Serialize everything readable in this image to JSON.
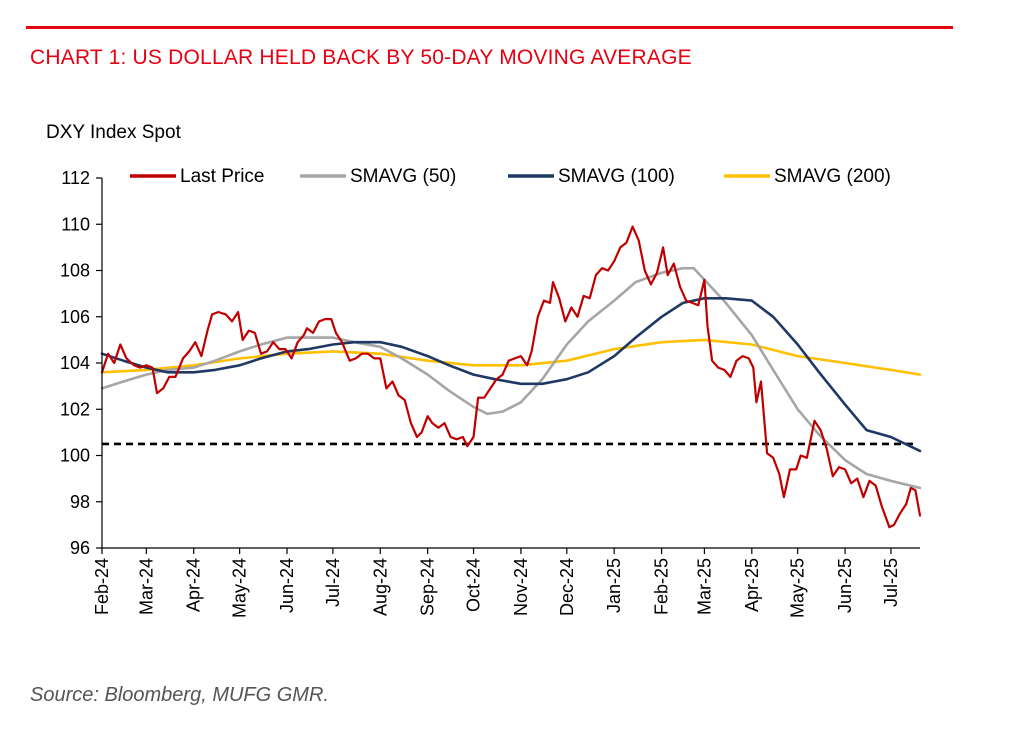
{
  "header": {
    "title": "CHART 1: US DOLLAR HELD BACK BY 50-DAY MOVING AVERAGE",
    "accent_color": "#e60012"
  },
  "footer": {
    "source": "Source: Bloomberg, MUFG GMR."
  },
  "chart_data": {
    "type": "line",
    "title": "CHART 1: US DOLLAR HELD BACK BY 50-DAY MOVING AVERAGE",
    "ylabel": "DXY Index Spot",
    "xlabel": "",
    "ylim": [
      96,
      112
    ],
    "yticks": [
      96,
      98,
      100,
      102,
      104,
      106,
      108,
      110,
      112
    ],
    "x_range": [
      "2024-02-01",
      "2025-07-20"
    ],
    "xticks": [
      {
        "date": "2024-02-01",
        "label": "Feb-24"
      },
      {
        "date": "2024-03-01",
        "label": "Mar-24"
      },
      {
        "date": "2024-04-01",
        "label": "Apr-24"
      },
      {
        "date": "2024-05-01",
        "label": "May-24"
      },
      {
        "date": "2024-06-01",
        "label": "Jun-24"
      },
      {
        "date": "2024-07-01",
        "label": "Jul-24"
      },
      {
        "date": "2024-08-01",
        "label": "Aug-24"
      },
      {
        "date": "2024-09-01",
        "label": "Sep-24"
      },
      {
        "date": "2024-10-01",
        "label": "Oct-24"
      },
      {
        "date": "2024-11-01",
        "label": "Nov-24"
      },
      {
        "date": "2024-12-01",
        "label": "Dec-24"
      },
      {
        "date": "2025-01-01",
        "label": "Jan-25"
      },
      {
        "date": "2025-02-01",
        "label": "Feb-25"
      },
      {
        "date": "2025-03-01",
        "label": "Mar-25"
      },
      {
        "date": "2025-04-01",
        "label": "Apr-25"
      },
      {
        "date": "2025-05-01",
        "label": "May-25"
      },
      {
        "date": "2025-06-01",
        "label": "Jun-25"
      },
      {
        "date": "2025-07-01",
        "label": "Jul-25"
      }
    ],
    "legend_position": "top",
    "grid": false,
    "reference_line": {
      "y": 100.5,
      "style": "dashed",
      "color": "#000000"
    },
    "series": [
      {
        "name": "Last Price",
        "color": "#c00000",
        "points": [
          [
            "2024-02-01",
            103.6
          ],
          [
            "2024-02-05",
            104.4
          ],
          [
            "2024-02-09",
            104.0
          ],
          [
            "2024-02-13",
            104.8
          ],
          [
            "2024-02-17",
            104.2
          ],
          [
            "2024-02-22",
            103.9
          ],
          [
            "2024-02-26",
            103.8
          ],
          [
            "2024-03-01",
            103.9
          ],
          [
            "2024-03-05",
            103.8
          ],
          [
            "2024-03-08",
            102.7
          ],
          [
            "2024-03-12",
            102.9
          ],
          [
            "2024-03-16",
            103.4
          ],
          [
            "2024-03-20",
            103.4
          ],
          [
            "2024-03-25",
            104.2
          ],
          [
            "2024-03-29",
            104.5
          ],
          [
            "2024-04-02",
            104.9
          ],
          [
            "2024-04-06",
            104.3
          ],
          [
            "2024-04-10",
            105.4
          ],
          [
            "2024-04-13",
            106.1
          ],
          [
            "2024-04-17",
            106.2
          ],
          [
            "2024-04-22",
            106.1
          ],
          [
            "2024-04-26",
            105.8
          ],
          [
            "2024-04-30",
            106.2
          ],
          [
            "2024-05-03",
            105.0
          ],
          [
            "2024-05-07",
            105.4
          ],
          [
            "2024-05-11",
            105.3
          ],
          [
            "2024-05-15",
            104.4
          ],
          [
            "2024-05-19",
            104.5
          ],
          [
            "2024-05-23",
            104.9
          ],
          [
            "2024-05-27",
            104.6
          ],
          [
            "2024-05-31",
            104.6
          ],
          [
            "2024-06-04",
            104.2
          ],
          [
            "2024-06-08",
            104.9
          ],
          [
            "2024-06-12",
            105.2
          ],
          [
            "2024-06-14",
            105.5
          ],
          [
            "2024-06-18",
            105.3
          ],
          [
            "2024-06-22",
            105.8
          ],
          [
            "2024-06-26",
            105.9
          ],
          [
            "2024-06-30",
            105.9
          ],
          [
            "2024-07-03",
            105.3
          ],
          [
            "2024-07-07",
            104.9
          ],
          [
            "2024-07-12",
            104.1
          ],
          [
            "2024-07-16",
            104.2
          ],
          [
            "2024-07-20",
            104.4
          ],
          [
            "2024-07-24",
            104.4
          ],
          [
            "2024-07-28",
            104.2
          ],
          [
            "2024-08-01",
            104.2
          ],
          [
            "2024-08-05",
            102.9
          ],
          [
            "2024-08-09",
            103.2
          ],
          [
            "2024-08-13",
            102.6
          ],
          [
            "2024-08-17",
            102.4
          ],
          [
            "2024-08-21",
            101.4
          ],
          [
            "2024-08-25",
            100.8
          ],
          [
            "2024-08-28",
            101.0
          ],
          [
            "2024-09-01",
            101.7
          ],
          [
            "2024-09-04",
            101.4
          ],
          [
            "2024-09-08",
            101.2
          ],
          [
            "2024-09-12",
            101.4
          ],
          [
            "2024-09-16",
            100.8
          ],
          [
            "2024-09-20",
            100.7
          ],
          [
            "2024-09-24",
            100.8
          ],
          [
            "2024-09-27",
            100.4
          ],
          [
            "2024-10-01",
            100.8
          ],
          [
            "2024-10-04",
            102.5
          ],
          [
            "2024-10-08",
            102.5
          ],
          [
            "2024-10-12",
            102.9
          ],
          [
            "2024-10-16",
            103.3
          ],
          [
            "2024-10-20",
            103.5
          ],
          [
            "2024-10-24",
            104.1
          ],
          [
            "2024-10-28",
            104.2
          ],
          [
            "2024-11-01",
            104.3
          ],
          [
            "2024-11-05",
            103.9
          ],
          [
            "2024-11-08",
            104.5
          ],
          [
            "2024-11-12",
            106.0
          ],
          [
            "2024-11-16",
            106.7
          ],
          [
            "2024-11-20",
            106.6
          ],
          [
            "2024-11-22",
            107.5
          ],
          [
            "2024-11-26",
            106.8
          ],
          [
            "2024-11-30",
            105.8
          ],
          [
            "2024-12-04",
            106.4
          ],
          [
            "2024-12-08",
            106.0
          ],
          [
            "2024-12-12",
            106.9
          ],
          [
            "2024-12-16",
            106.8
          ],
          [
            "2024-12-20",
            107.8
          ],
          [
            "2024-12-24",
            108.1
          ],
          [
            "2024-12-28",
            108.0
          ],
          [
            "2025-01-01",
            108.4
          ],
          [
            "2025-01-05",
            109.0
          ],
          [
            "2025-01-09",
            109.2
          ],
          [
            "2025-01-13",
            109.9
          ],
          [
            "2025-01-17",
            109.3
          ],
          [
            "2025-01-21",
            108.0
          ],
          [
            "2025-01-25",
            107.4
          ],
          [
            "2025-01-29",
            107.9
          ],
          [
            "2025-02-02",
            109.0
          ],
          [
            "2025-02-05",
            107.8
          ],
          [
            "2025-02-09",
            108.3
          ],
          [
            "2025-02-13",
            107.3
          ],
          [
            "2025-02-17",
            106.7
          ],
          [
            "2025-02-21",
            106.6
          ],
          [
            "2025-02-25",
            106.5
          ],
          [
            "2025-03-01",
            107.6
          ],
          [
            "2025-03-03",
            105.6
          ],
          [
            "2025-03-06",
            104.1
          ],
          [
            "2025-03-10",
            103.8
          ],
          [
            "2025-03-14",
            103.7
          ],
          [
            "2025-03-18",
            103.4
          ],
          [
            "2025-03-22",
            104.1
          ],
          [
            "2025-03-26",
            104.3
          ],
          [
            "2025-03-30",
            104.2
          ],
          [
            "2025-04-02",
            103.8
          ],
          [
            "2025-04-04",
            102.3
          ],
          [
            "2025-04-07",
            103.2
          ],
          [
            "2025-04-11",
            100.1
          ],
          [
            "2025-04-15",
            99.9
          ],
          [
            "2025-04-19",
            99.2
          ],
          [
            "2025-04-22",
            98.2
          ],
          [
            "2025-04-26",
            99.4
          ],
          [
            "2025-04-30",
            99.4
          ],
          [
            "2025-05-03",
            100.0
          ],
          [
            "2025-05-07",
            99.9
          ],
          [
            "2025-05-12",
            101.5
          ],
          [
            "2025-05-16",
            101.1
          ],
          [
            "2025-05-20",
            100.3
          ],
          [
            "2025-05-24",
            99.1
          ],
          [
            "2025-05-28",
            99.5
          ],
          [
            "2025-06-01",
            99.4
          ],
          [
            "2025-06-05",
            98.8
          ],
          [
            "2025-06-09",
            99.0
          ],
          [
            "2025-06-13",
            98.2
          ],
          [
            "2025-06-17",
            98.9
          ],
          [
            "2025-06-21",
            98.7
          ],
          [
            "2025-06-25",
            97.8
          ],
          [
            "2025-06-30",
            96.9
          ],
          [
            "2025-07-03",
            97.0
          ],
          [
            "2025-07-07",
            97.5
          ],
          [
            "2025-07-11",
            97.9
          ],
          [
            "2025-07-14",
            98.6
          ],
          [
            "2025-07-17",
            98.5
          ],
          [
            "2025-07-20",
            97.4
          ]
        ]
      },
      {
        "name": "SMAVG (50)",
        "color": "#a6a6a6",
        "points": [
          [
            "2024-02-01",
            102.9
          ],
          [
            "2024-02-15",
            103.2
          ],
          [
            "2024-03-01",
            103.5
          ],
          [
            "2024-03-15",
            103.7
          ],
          [
            "2024-04-01",
            103.8
          ],
          [
            "2024-04-15",
            104.1
          ],
          [
            "2024-05-01",
            104.5
          ],
          [
            "2024-05-15",
            104.8
          ],
          [
            "2024-06-01",
            105.1
          ],
          [
            "2024-06-15",
            105.1
          ],
          [
            "2024-07-01",
            105.1
          ],
          [
            "2024-07-15",
            104.9
          ],
          [
            "2024-08-01",
            104.7
          ],
          [
            "2024-08-15",
            104.2
          ],
          [
            "2024-09-01",
            103.5
          ],
          [
            "2024-09-15",
            102.8
          ],
          [
            "2024-10-01",
            102.1
          ],
          [
            "2024-10-10",
            101.8
          ],
          [
            "2024-10-20",
            101.9
          ],
          [
            "2024-11-01",
            102.3
          ],
          [
            "2024-11-15",
            103.3
          ],
          [
            "2024-12-01",
            104.8
          ],
          [
            "2024-12-15",
            105.8
          ],
          [
            "2025-01-01",
            106.7
          ],
          [
            "2025-01-15",
            107.5
          ],
          [
            "2025-02-01",
            107.9
          ],
          [
            "2025-02-15",
            108.1
          ],
          [
            "2025-02-22",
            108.1
          ],
          [
            "2025-03-01",
            107.6
          ],
          [
            "2025-03-15",
            106.6
          ],
          [
            "2025-04-01",
            105.2
          ],
          [
            "2025-04-15",
            103.7
          ],
          [
            "2025-05-01",
            102.0
          ],
          [
            "2025-05-15",
            100.9
          ],
          [
            "2025-06-01",
            99.8
          ],
          [
            "2025-06-15",
            99.2
          ],
          [
            "2025-07-01",
            98.9
          ],
          [
            "2025-07-20",
            98.6
          ]
        ]
      },
      {
        "name": "SMAVG (100)",
        "color": "#1f3864",
        "points": [
          [
            "2024-02-01",
            104.4
          ],
          [
            "2024-02-15",
            104.1
          ],
          [
            "2024-03-01",
            103.8
          ],
          [
            "2024-03-15",
            103.6
          ],
          [
            "2024-04-01",
            103.6
          ],
          [
            "2024-04-15",
            103.7
          ],
          [
            "2024-05-01",
            103.9
          ],
          [
            "2024-05-15",
            104.2
          ],
          [
            "2024-06-01",
            104.5
          ],
          [
            "2024-06-15",
            104.6
          ],
          [
            "2024-07-01",
            104.8
          ],
          [
            "2024-07-15",
            104.9
          ],
          [
            "2024-08-01",
            104.9
          ],
          [
            "2024-08-15",
            104.7
          ],
          [
            "2024-09-01",
            104.3
          ],
          [
            "2024-09-15",
            103.9
          ],
          [
            "2024-10-01",
            103.5
          ],
          [
            "2024-10-15",
            103.3
          ],
          [
            "2024-11-01",
            103.1
          ],
          [
            "2024-11-15",
            103.1
          ],
          [
            "2024-12-01",
            103.3
          ],
          [
            "2024-12-15",
            103.6
          ],
          [
            "2025-01-01",
            104.3
          ],
          [
            "2025-01-15",
            105.1
          ],
          [
            "2025-02-01",
            106.0
          ],
          [
            "2025-02-15",
            106.6
          ],
          [
            "2025-03-01",
            106.8
          ],
          [
            "2025-03-15",
            106.8
          ],
          [
            "2025-04-01",
            106.7
          ],
          [
            "2025-04-15",
            106.0
          ],
          [
            "2025-05-01",
            104.8
          ],
          [
            "2025-05-15",
            103.6
          ],
          [
            "2025-06-01",
            102.2
          ],
          [
            "2025-06-15",
            101.1
          ],
          [
            "2025-07-01",
            100.8
          ],
          [
            "2025-07-20",
            100.2
          ]
        ]
      },
      {
        "name": "SMAVG (200)",
        "color": "#ffc000",
        "points": [
          [
            "2024-02-01",
            103.6
          ],
          [
            "2024-03-01",
            103.7
          ],
          [
            "2024-04-01",
            103.9
          ],
          [
            "2024-05-01",
            104.2
          ],
          [
            "2024-06-01",
            104.4
          ],
          [
            "2024-07-01",
            104.5
          ],
          [
            "2024-08-01",
            104.4
          ],
          [
            "2024-09-01",
            104.1
          ],
          [
            "2024-10-01",
            103.9
          ],
          [
            "2024-11-01",
            103.9
          ],
          [
            "2024-12-01",
            104.1
          ],
          [
            "2025-01-01",
            104.6
          ],
          [
            "2025-02-01",
            104.9
          ],
          [
            "2025-03-01",
            105.0
          ],
          [
            "2025-04-01",
            104.8
          ],
          [
            "2025-05-01",
            104.3
          ],
          [
            "2025-06-01",
            104.0
          ],
          [
            "2025-07-01",
            103.7
          ],
          [
            "2025-07-20",
            103.5
          ]
        ]
      }
    ]
  }
}
